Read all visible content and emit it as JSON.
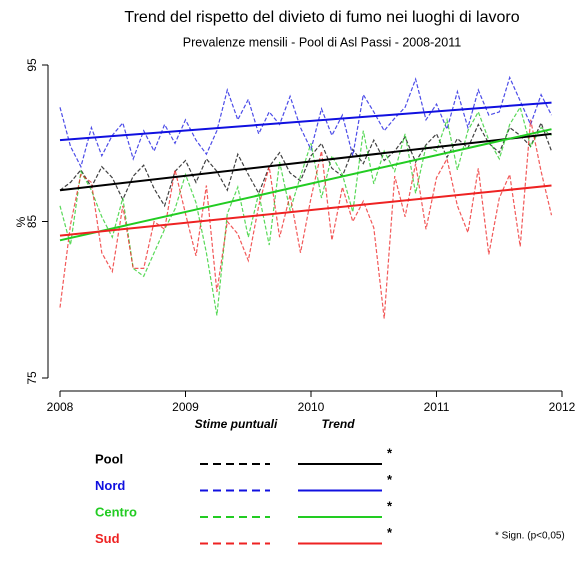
{
  "chart_data": {
    "type": "line",
    "title": "Trend del rispetto del divieto di fumo nei luoghi di lavoro",
    "subtitle": "Prevalenze mensili - Pool di Asl Passi - 2008-2011",
    "y_label": "%",
    "x": [
      2008,
      2008.0833,
      2008.1667,
      2008.25,
      2008.3333,
      2008.4167,
      2008.5,
      2008.5833,
      2008.6667,
      2008.75,
      2008.8333,
      2008.9167,
      2009,
      2009.0833,
      2009.1667,
      2009.25,
      2009.3333,
      2009.4167,
      2009.5,
      2009.5833,
      2009.6667,
      2009.75,
      2009.8333,
      2009.9167,
      2010,
      2010.0833,
      2010.1667,
      2010.25,
      2010.3333,
      2010.4167,
      2010.5,
      2010.5833,
      2010.6667,
      2010.75,
      2010.8333,
      2010.9167,
      2011,
      2011.0833,
      2011.1667,
      2011.25,
      2011.3333,
      2011.4167,
      2011.5,
      2011.5833,
      2011.6667,
      2011.75,
      2011.8333,
      2011.9167
    ],
    "trend_x": [
      2008,
      2011.9167
    ],
    "xlim": [
      2008,
      2012
    ],
    "xticks": [
      2008,
      2009,
      2010,
      2011,
      2012
    ],
    "ylim": [
      75,
      95
    ],
    "yticks": [
      75,
      85,
      95
    ],
    "legend_header_points": "Stime puntuali",
    "legend_header_trend": "Trend",
    "significance_note": "* Sign. (p<0,05)",
    "series": [
      {
        "name": "Pool",
        "color": "#000000",
        "significance": "*",
        "trend": [
          87.0,
          90.6
        ],
        "values": [
          87.0,
          87.5,
          88.3,
          87.2,
          88.5,
          87.8,
          86.4,
          87.9,
          88.6,
          87.1,
          86.0,
          88.2,
          88.9,
          87.5,
          89.0,
          88.2,
          87.0,
          89.3,
          88.0,
          86.8,
          88.5,
          89.4,
          88.1,
          87.6,
          89.2,
          90.0,
          88.4,
          87.9,
          89.6,
          88.7,
          90.2,
          88.9,
          89.5,
          90.4,
          88.8,
          89.9,
          90.6,
          89.1,
          90.3,
          89.7,
          91.2,
          90.0,
          89.4,
          91.0,
          90.5,
          89.8,
          91.3,
          89.5
        ]
      },
      {
        "name": "Nord",
        "color": "#1010e0",
        "significance": "*",
        "trend": [
          90.2,
          92.6
        ],
        "values": [
          92.3,
          89.8,
          88.5,
          91.0,
          89.2,
          90.5,
          91.3,
          89.0,
          90.8,
          89.5,
          91.2,
          90.0,
          91.5,
          90.2,
          89.3,
          90.8,
          93.4,
          91.5,
          92.8,
          90.6,
          92.0,
          91.2,
          93.0,
          91.0,
          89.6,
          92.2,
          90.5,
          91.8,
          89.2,
          93.1,
          92.0,
          90.8,
          91.6,
          92.3,
          94.1,
          91.5,
          92.5,
          90.9,
          93.3,
          91.0,
          93.4,
          91.8,
          92.0,
          94.2,
          92.7,
          91.2,
          93.1,
          91.8
        ]
      },
      {
        "name": "Centro",
        "color": "#22cc22",
        "significance": "*",
        "trend": [
          83.8,
          90.9
        ],
        "values": [
          86.0,
          83.5,
          88.2,
          87.0,
          85.3,
          84.0,
          86.5,
          82.0,
          81.5,
          83.0,
          84.5,
          85.8,
          88.0,
          86.2,
          83.0,
          79.0,
          85.5,
          87.2,
          84.0,
          86.8,
          83.5,
          88.8,
          85.7,
          87.9,
          90.0,
          86.5,
          89.2,
          88.0,
          85.6,
          90.8,
          87.4,
          89.5,
          88.2,
          90.6,
          86.8,
          89.8,
          89.5,
          91.5,
          88.3,
          90.8,
          92.0,
          90.2,
          89.0,
          91.2,
          92.3,
          89.8,
          91.0,
          90.5
        ]
      },
      {
        "name": "Sud",
        "color": "#ee2222",
        "significance": "*",
        "trend": [
          84.1,
          87.3
        ],
        "values": [
          79.5,
          84.8,
          88.0,
          87.5,
          83.0,
          81.8,
          86.0,
          82.0,
          82.0,
          85.0,
          84.5,
          88.3,
          85.5,
          82.8,
          87.3,
          80.5,
          85.0,
          84.2,
          82.5,
          86.0,
          88.5,
          84.0,
          86.7,
          83.0,
          86.5,
          89.5,
          83.8,
          87.2,
          85.0,
          86.3,
          84.6,
          78.8,
          87.9,
          85.3,
          88.7,
          84.5,
          87.8,
          89.0,
          86.0,
          84.3,
          88.4,
          82.9,
          86.5,
          88.0,
          83.4,
          91.5,
          88.2,
          85.4
        ]
      }
    ]
  }
}
